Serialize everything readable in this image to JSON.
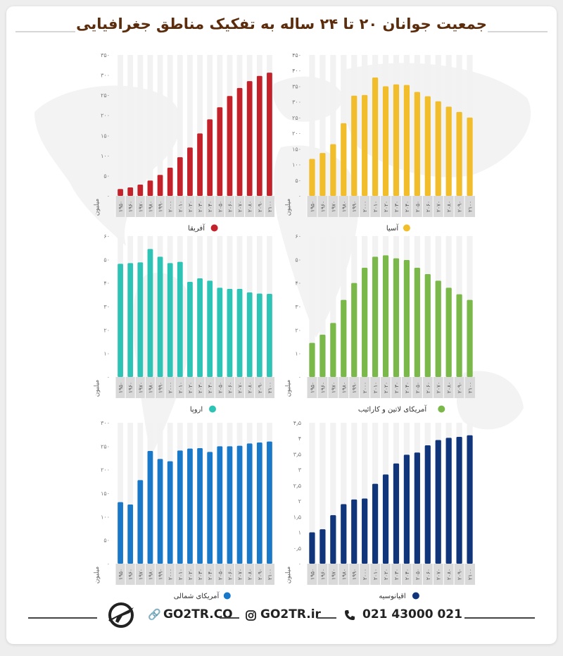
{
  "title": "جمعیت جوانان ۲۰ تا ۲۴ ساله به تفکیک مناطق جغرافیایی",
  "footer": {
    "site1": "GO2TR.CO",
    "site2": "GO2TR.ir",
    "phone": "021 43000 021",
    "link_icon": "link-icon",
    "instagram_icon": "instagram-icon",
    "phone_icon": "phone-icon",
    "logo": "airplane-logo"
  },
  "chart_data": [
    {
      "id": "africa",
      "type": "bar",
      "color": "#c4222a",
      "legend": "آفریقا",
      "ylabel": "میلیون",
      "ylim": [
        0,
        350
      ],
      "ytick_labels": [
        "۰",
        "۵۰",
        "۱۰۰",
        "۱۵۰",
        "۲۰۰",
        "۲۵۰",
        "۳۰۰",
        "۳۵۰"
      ],
      "categories": [
        "۱۹۵۰",
        "۱۹۶۰",
        "۱۹۷۰",
        "۱۹۸۰",
        "۱۹۹۰",
        "۲۰۰۰",
        "۲۰۱۰",
        "۲۰۲۰",
        "۲۰۳۰",
        "۲۰۴۰",
        "۲۰۵۰",
        "۲۰۶۰",
        "۲۰۷۰",
        "۲۰۸۰",
        "۲۰۹۰",
        "۲۱۰۰"
      ],
      "values": [
        17,
        21,
        28,
        38,
        52,
        70,
        96,
        120,
        155,
        190,
        220,
        248,
        268,
        285,
        298,
        306
      ]
    },
    {
      "id": "asia",
      "type": "bar",
      "color": "#f2bd2b",
      "legend": "آسیا",
      "ylabel": "میلیون",
      "ylim": [
        0,
        450
      ],
      "ytick_labels": [
        "۰",
        "۵۰",
        "۱۰۰",
        "۱۵۰",
        "۲۰۰",
        "۲۵۰",
        "۳۰۰",
        "۳۵۰",
        "۴۰۰",
        "۴۵۰"
      ],
      "categories": [
        "۱۹۵۰",
        "۱۹۶۰",
        "۱۹۷۰",
        "۱۹۸۰",
        "۱۹۹۰",
        "۲۰۰۰",
        "۲۰۱۰",
        "۲۰۲۰",
        "۲۰۳۰",
        "۲۰۴۰",
        "۲۰۵۰",
        "۲۰۶۰",
        "۲۰۷۰",
        "۲۰۸۰",
        "۲۰۹۰",
        "۲۱۰۰"
      ],
      "values": [
        118,
        137,
        165,
        232,
        320,
        322,
        378,
        350,
        356,
        354,
        332,
        318,
        302,
        285,
        268,
        250
      ]
    },
    {
      "id": "europe",
      "type": "bar",
      "color": "#2ec4b5",
      "legend": "اروپا",
      "ylabel": "میلیون",
      "ylim": [
        0,
        60
      ],
      "ytick_labels": [
        "۰",
        "۱۰",
        "۲۰",
        "۳۰",
        "۴۰",
        "۵۰",
        "۶۰"
      ],
      "categories": [
        "۱۹۵۰",
        "۱۹۶۰",
        "۱۹۷۰",
        "۱۹۸۰",
        "۱۹۹۰",
        "۲۰۰۰",
        "۲۰۱۰",
        "۲۰۲۰",
        "۲۰۳۰",
        "۲۰۴۰",
        "۲۰۵۰",
        "۲۰۶۰",
        "۲۰۷۰",
        "۲۰۸۰",
        "۲۰۹۰",
        "۲۱۰۰"
      ],
      "values": [
        48.2,
        48.5,
        48.8,
        54.5,
        51.2,
        48.5,
        49.0,
        40.5,
        42.0,
        41.0,
        38.0,
        37.5,
        37.5,
        36.0,
        35.5,
        35.4
      ]
    },
    {
      "id": "latin-america",
      "type": "bar",
      "color": "#7bb84a",
      "legend": "آمریکای لاتین و کارائیب",
      "ylabel": "میلیون",
      "ylim": [
        0,
        60
      ],
      "ytick_labels": [
        "۰",
        "۱۰",
        "۲۰",
        "۳۰",
        "۴۰",
        "۵۰",
        "۶۰"
      ],
      "categories": [
        "۱۹۵۰",
        "۱۹۶۰",
        "۱۹۷۰",
        "۱۹۸۰",
        "۱۹۹۰",
        "۲۰۰۰",
        "۲۰۱۰",
        "۲۰۲۰",
        "۲۰۳۰",
        "۲۰۴۰",
        "۲۰۵۰",
        "۲۰۶۰",
        "۲۰۷۰",
        "۲۰۸۰",
        "۲۰۹۰",
        "۲۱۰۰"
      ],
      "values": [
        14.5,
        18.0,
        23.0,
        32.8,
        40.0,
        46.5,
        51.2,
        51.8,
        50.5,
        49.8,
        46.5,
        43.8,
        41.0,
        38.0,
        35.2,
        32.8
      ]
    },
    {
      "id": "north-america",
      "type": "bar",
      "color": "#1978c8",
      "legend": "آمریکای شمالی",
      "ylabel": "میلیون",
      "ylim": [
        0,
        300
      ],
      "ytick_labels": [
        "۰",
        "۵۰",
        "۱۰۰",
        "۱۵۰",
        "۲۰۰",
        "۲۵۰",
        "۳۰۰"
      ],
      "categories": [
        "۱۹۵۰",
        "۱۹۶۰",
        "۱۹۷۰",
        "۱۹۸۰",
        "۱۹۹۰",
        "۲۰۰۰",
        "۲۰۱۰",
        "۲۰۲۰",
        "۲۰۳۰",
        "۲۰۴۰",
        "۲۰۵۰",
        "۲۰۶۰",
        "۲۰۷۰",
        "۲۰۸۰",
        "۲۰۹۰",
        "۲۱۰۰"
      ],
      "values": [
        131,
        126,
        178,
        240,
        223,
        218,
        241,
        245,
        246,
        238,
        250,
        250,
        251,
        256,
        258,
        260
      ]
    },
    {
      "id": "oceania",
      "type": "bar",
      "color": "#11357a",
      "legend": "اقیانوسیه",
      "ylabel": "میلیون",
      "ylim": [
        0,
        4.5
      ],
      "ytick_labels": [
        "۰",
        "۰٫۵",
        "۱",
        "۱٫۵",
        "۲",
        "۲٫۵",
        "۳",
        "۳٫۵",
        "۴",
        "۴٫۵"
      ],
      "categories": [
        "۱۹۵۰",
        "۱۹۶۰",
        "۱۹۷۰",
        "۱۹۸۰",
        "۱۹۹۰",
        "۲۰۰۰",
        "۲۰۱۰",
        "۲۰۲۰",
        "۲۰۳۰",
        "۲۰۴۰",
        "۲۰۵۰",
        "۲۰۶۰",
        "۲۰۷۰",
        "۲۰۸۰",
        "۲۰۹۰",
        "۲۱۰۰"
      ],
      "values": [
        1.0,
        1.1,
        1.55,
        1.9,
        2.05,
        2.08,
        2.55,
        2.85,
        3.2,
        3.48,
        3.55,
        3.78,
        3.95,
        4.02,
        4.05,
        4.1
      ]
    }
  ]
}
